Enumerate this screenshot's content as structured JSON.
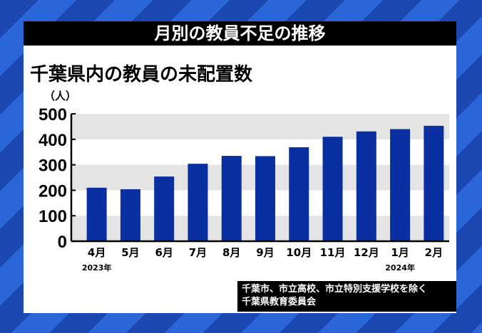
{
  "title": "月別の教員不足の推移",
  "chart_data": {
    "type": "bar",
    "title": "千葉県内の教員の未配置数",
    "ylabel": "（人）",
    "categories": [
      "4月",
      "5月",
      "6月",
      "7月",
      "8月",
      "9月",
      "10月",
      "11月",
      "12月",
      "1月",
      "2月"
    ],
    "year_labels": {
      "0": "2023年",
      "9": "2024年"
    },
    "values": [
      210,
      204,
      254,
      304,
      335,
      334,
      369,
      410,
      431,
      440,
      453
    ],
    "ylim": [
      0,
      500
    ],
    "yticks": [
      0,
      100,
      200,
      300,
      400,
      500
    ],
    "bar_color": "#0a2fa0",
    "grid": "alternating bands"
  },
  "source": {
    "line1": "千葉市、市立高校、市立特別支援学校を除く",
    "line2": "千葉県教育委員会"
  }
}
